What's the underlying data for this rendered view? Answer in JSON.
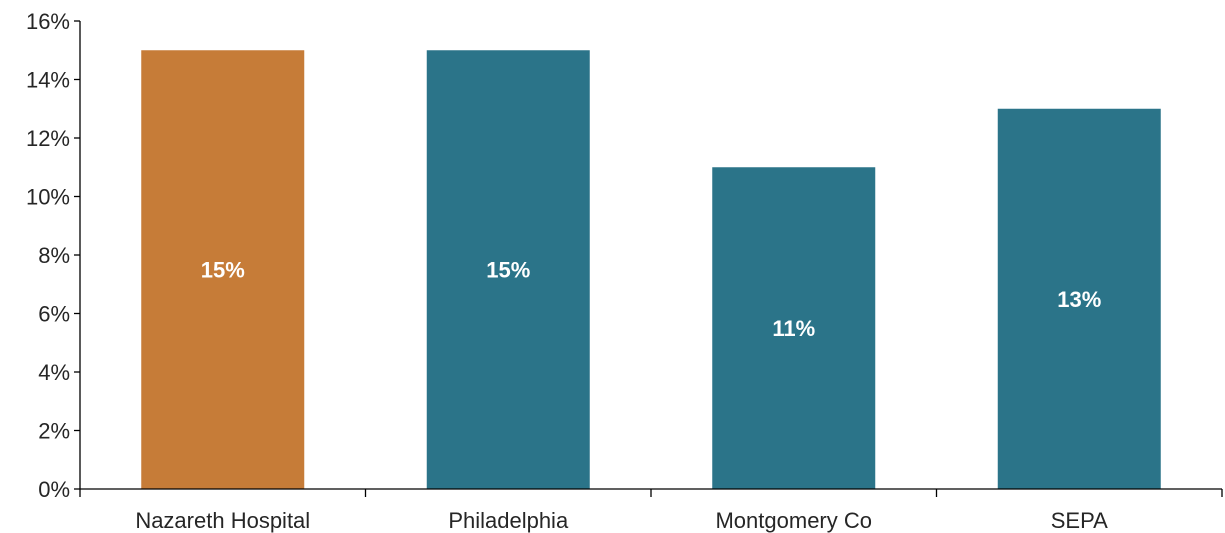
{
  "chart_data": {
    "type": "bar",
    "categories": [
      "Nazareth Hospital",
      "Philadelphia",
      "Montgomery Co",
      "SEPA"
    ],
    "values": [
      15,
      15,
      11,
      13
    ],
    "data_labels": [
      "15%",
      "15%",
      "11%",
      "13%"
    ],
    "bar_colors": [
      "#C67C38",
      "#2B7489",
      "#2B7489",
      "#2B7489"
    ],
    "ylim": [
      0,
      16
    ],
    "yticks": [
      0,
      2,
      4,
      6,
      8,
      10,
      12,
      14,
      16
    ],
    "ytick_labels": [
      "0%",
      "2%",
      "4%",
      "6%",
      "8%",
      "10%",
      "12%",
      "14%",
      "16%"
    ],
    "grid": false,
    "legend": "none"
  }
}
